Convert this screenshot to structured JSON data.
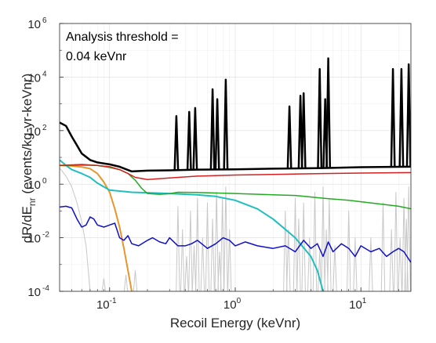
{
  "chart_data": {
    "type": "line",
    "xscale": "log",
    "yscale": "log",
    "xlim": [
      0.04,
      25
    ],
    "ylim": [
      0.0001,
      1000000
    ],
    "xlabel": "Recoil Energy (keVnr)",
    "ylabel_main": "dR/dE",
    "ylabel_sub": "nr",
    "ylabel_rest": " (events/kg-yr-keVnr)",
    "annotation_lines": [
      "Analysis threshold =",
      "0.04 keVnr"
    ],
    "x_ticks": [
      {
        "value": 0.1,
        "base": "10",
        "exp": "-1"
      },
      {
        "value": 1,
        "base": "10",
        "exp": "0"
      },
      {
        "value": 10,
        "base": "10",
        "exp": "1"
      }
    ],
    "y_ticks": [
      {
        "value": 0.0001,
        "base": "10",
        "exp": "-4"
      },
      {
        "value": 0.01,
        "base": "10",
        "exp": "-2"
      },
      {
        "value": 1,
        "base": "10",
        "exp": "0"
      },
      {
        "value": 100,
        "base": "10",
        "exp": "2"
      },
      {
        "value": 10000,
        "base": "10",
        "exp": "4"
      },
      {
        "value": 1000000,
        "base": "10",
        "exp": "6"
      }
    ],
    "grid": true,
    "series": [
      {
        "color": "#c8c8c8",
        "width": 1,
        "x": [
          0.04,
          0.045,
          0.05,
          0.055,
          0.06,
          0.065,
          0.07
        ],
        "y": [
          4.0,
          2.0,
          0.8,
          0.2,
          0.04,
          0.005,
          0.0001
        ],
        "spikes": [
          {
            "x": 0.09,
            "base": 0.0001,
            "peak": 0.0003
          },
          {
            "x": 0.135,
            "base": 0.0001,
            "peak": 0.0004
          },
          {
            "x": 0.16,
            "base": 0.0001,
            "peak": 0.0006
          },
          {
            "x": 0.35,
            "base": 0.0001,
            "peak": 0.15
          },
          {
            "x": 0.38,
            "base": 0.0001,
            "peak": 0.02
          },
          {
            "x": 0.41,
            "base": 0.0001,
            "peak": 0.002
          },
          {
            "x": 0.44,
            "base": 0.0001,
            "peak": 0.1
          },
          {
            "x": 0.47,
            "base": 0.0001,
            "peak": 0.005
          },
          {
            "x": 0.5,
            "base": 0.0001,
            "peak": 0.3
          },
          {
            "x": 0.55,
            "base": 0.0001,
            "peak": 0.01
          },
          {
            "x": 0.6,
            "base": 0.0001,
            "peak": 0.2
          },
          {
            "x": 0.66,
            "base": 0.0001,
            "peak": 0.05
          },
          {
            "x": 0.71,
            "base": 0.0001,
            "peak": 0.5
          },
          {
            "x": 0.75,
            "base": 0.0001,
            "peak": 0.003
          },
          {
            "x": 0.79,
            "base": 0.0001,
            "peak": 0.3
          },
          {
            "x": 0.84,
            "base": 0.0001,
            "peak": 0.8
          },
          {
            "x": 0.9,
            "base": 0.0001,
            "peak": 0.02
          },
          {
            "x": 2.5,
            "base": 0.0001,
            "peak": 0.1
          },
          {
            "x": 2.65,
            "base": 0.0001,
            "peak": 0.02
          },
          {
            "x": 3.0,
            "base": 0.0001,
            "peak": 0.3
          },
          {
            "x": 3.2,
            "base": 0.0001,
            "peak": 0.05
          },
          {
            "x": 3.5,
            "base": 0.0001,
            "peak": 0.2
          },
          {
            "x": 3.9,
            "base": 0.0001,
            "peak": 0.01
          },
          {
            "x": 4.3,
            "base": 0.0001,
            "peak": 0.5
          },
          {
            "x": 4.7,
            "base": 0.0001,
            "peak": 0.003
          },
          {
            "x": 5.0,
            "base": 0.0001,
            "peak": 0.8
          },
          {
            "x": 5.3,
            "base": 0.0001,
            "peak": 0.02
          },
          {
            "x": 5.6,
            "base": 0.0001,
            "peak": 0.3
          },
          {
            "x": 6.2,
            "base": 0.0001,
            "peak": 0.005
          },
          {
            "x": 8.0,
            "base": 0.0001,
            "peak": 0.1
          },
          {
            "x": 9.0,
            "base": 0.0001,
            "peak": 0.01
          },
          {
            "x": 12.0,
            "base": 0.0001,
            "peak": 0.01
          },
          {
            "x": 15.0,
            "base": 0.0001,
            "peak": 0.2
          },
          {
            "x": 17.5,
            "base": 0.0001,
            "peak": 0.02
          },
          {
            "x": 19.0,
            "base": 0.0001,
            "peak": 0.5
          },
          {
            "x": 20.5,
            "base": 0.0001,
            "peak": 0.01
          },
          {
            "x": 22.0,
            "base": 0.0001,
            "peak": 0.3
          },
          {
            "x": 23.0,
            "base": 0.0001,
            "peak": 0.05
          },
          {
            "x": 24.0,
            "base": 0.0001,
            "peak": 0.8
          }
        ]
      },
      {
        "color": "#e8962a",
        "width": 2,
        "x": [
          0.04,
          0.05,
          0.06,
          0.07,
          0.08,
          0.09,
          0.1,
          0.11,
          0.12,
          0.13,
          0.14,
          0.15
        ],
        "y": [
          5.0,
          4.8,
          4.4,
          3.8,
          2.5,
          1.2,
          0.5,
          0.12,
          0.025,
          0.004,
          0.0006,
          0.0001
        ]
      },
      {
        "color": "#1fbfbf",
        "width": 2,
        "x": [
          0.04,
          0.045,
          0.05,
          0.06,
          0.07,
          0.08,
          0.1,
          0.15,
          0.2,
          0.3,
          0.5,
          0.7,
          1,
          1.5,
          2,
          3,
          4,
          4.5,
          5
        ],
        "y": [
          8,
          5,
          3.5,
          2.5,
          1.8,
          1.1,
          0.6,
          0.5,
          0.48,
          0.45,
          0.4,
          0.35,
          0.25,
          0.12,
          0.05,
          0.01,
          0.002,
          0.0006,
          0.0001
        ]
      },
      {
        "color": "#22aa22",
        "width": 1.5,
        "x": [
          0.04,
          0.06,
          0.08,
          0.1,
          0.12,
          0.14,
          0.16,
          0.18,
          0.2,
          0.25,
          0.3,
          0.35,
          0.5,
          1,
          2,
          3,
          5,
          8,
          12,
          16,
          20,
          25
        ],
        "y": [
          5,
          5.5,
          5,
          4.2,
          3.5,
          2.5,
          1.4,
          0.7,
          0.45,
          0.42,
          0.44,
          0.5,
          0.49,
          0.45,
          0.4,
          0.38,
          0.3,
          0.25,
          0.2,
          0.17,
          0.15,
          0.12
        ]
      },
      {
        "color": "#d42020",
        "width": 1.5,
        "x": [
          0.04,
          0.06,
          0.08,
          0.1,
          0.12,
          0.14,
          0.16,
          0.2,
          0.3,
          0.5,
          1,
          2,
          5,
          10,
          25
        ],
        "y": [
          5,
          5.2,
          5,
          4.5,
          3.5,
          2.5,
          1.8,
          1.5,
          1.7,
          2.0,
          2.2,
          2.3,
          2.5,
          2.6,
          2.7
        ]
      },
      {
        "color": "#1010cc",
        "width": 1.5,
        "x": [
          0.04,
          0.045,
          0.05,
          0.055,
          0.06,
          0.065,
          0.07,
          0.075,
          0.08,
          0.09,
          0.1,
          0.11,
          0.12,
          0.13,
          0.14,
          0.15,
          0.17,
          0.2,
          0.22,
          0.25,
          0.28,
          0.3,
          0.35,
          0.4,
          0.45,
          0.5,
          0.6,
          0.7,
          0.8,
          0.9,
          1.0,
          1.2,
          1.5,
          2,
          2.5,
          3,
          3.5,
          4,
          4.5,
          5,
          5.5,
          6,
          7,
          8,
          9,
          10,
          12,
          14,
          16,
          18,
          20,
          22,
          25
        ],
        "y": [
          0.14,
          0.15,
          0.13,
          0.05,
          0.025,
          0.03,
          0.06,
          0.05,
          0.03,
          0.025,
          0.03,
          0.035,
          0.01,
          0.008,
          0.012,
          0.006,
          0.005,
          0.008,
          0.01,
          0.007,
          0.006,
          0.01,
          0.005,
          0.005,
          0.006,
          0.008,
          0.004,
          0.006,
          0.01,
          0.008,
          0.005,
          0.007,
          0.005,
          0.004,
          0.005,
          0.003,
          0.008,
          0.004,
          0.006,
          0.002,
          0.007,
          0.003,
          0.006,
          0.004,
          0.002,
          0.005,
          0.003,
          0.004,
          0.002,
          0.003,
          0.004,
          0.003,
          0.0012
        ]
      },
      {
        "color": "#000000",
        "width": 2.5,
        "x": [
          0.04,
          0.045,
          0.05,
          0.055,
          0.06,
          0.07,
          0.08,
          0.1,
          0.12,
          0.15,
          0.2,
          0.3,
          0.5,
          1,
          2,
          5,
          10,
          25
        ],
        "y": [
          200,
          150,
          60,
          28,
          14,
          8,
          6.5,
          5.5,
          4.5,
          3.0,
          3.2,
          3.3,
          3.5,
          3.6,
          3.8,
          4.0,
          4.3,
          4.5
        ],
        "spikes": [
          {
            "x": 0.34,
            "base": 3.3,
            "peak": 350
          },
          {
            "x": 0.43,
            "base": 3.4,
            "peak": 500
          },
          {
            "x": 0.48,
            "base": 3.4,
            "peak": 700
          },
          {
            "x": 0.66,
            "base": 3.5,
            "peak": 3500
          },
          {
            "x": 0.72,
            "base": 3.5,
            "peak": 1500
          },
          {
            "x": 0.84,
            "base": 3.6,
            "peak": 8000
          },
          {
            "x": 2.7,
            "base": 3.8,
            "peak": 800
          },
          {
            "x": 3.3,
            "base": 3.9,
            "peak": 2000
          },
          {
            "x": 3.5,
            "base": 3.9,
            "peak": 2500
          },
          {
            "x": 4.7,
            "base": 4.0,
            "peak": 20000
          },
          {
            "x": 5.2,
            "base": 4.0,
            "peak": 1500
          },
          {
            "x": 5.5,
            "base": 4.0,
            "peak": 50000
          },
          {
            "x": 18.0,
            "base": 4.4,
            "peak": 20000
          },
          {
            "x": 21.0,
            "base": 4.4,
            "peak": 20000
          },
          {
            "x": 24.0,
            "base": 4.5,
            "peak": 30000
          }
        ]
      }
    ]
  }
}
